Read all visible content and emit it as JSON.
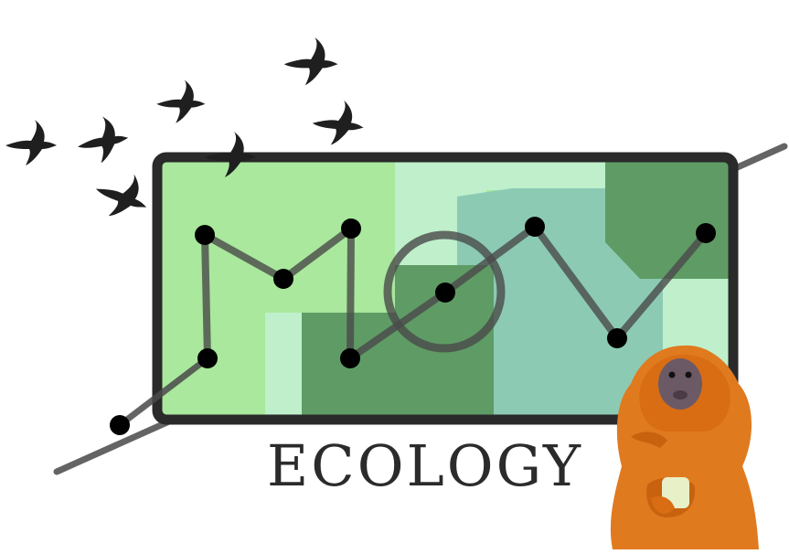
{
  "logo": {
    "wordmark": "ECOLOGY",
    "mark_letters_icon": "mov-track-letters-icon",
    "palette": {
      "frame": "#2a2a2a",
      "light_green": "#a9e89d",
      "pale_green": "#bff0cb",
      "teal": "#8ccab4",
      "dark_green": "#5f9c65",
      "path": "#4a4a4a",
      "node": "#000000",
      "monkey_orange": "#e07a1f"
    },
    "icons": [
      "bird-silhouette-icon",
      "golden-lion-tamarin-icon",
      "tracking-node-icon"
    ]
  }
}
